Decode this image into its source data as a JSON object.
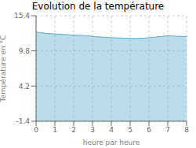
{
  "chart_data": {
    "type": "area",
    "title": "Evolution de la température",
    "xlabel": "heure par heure",
    "ylabel": "Température en °C",
    "color": "#55aacc",
    "xlim": [
      0,
      8
    ],
    "ylim": [
      -1.4,
      15.4
    ],
    "xticks": [
      0,
      1,
      2,
      3,
      4,
      5,
      6,
      7,
      8
    ],
    "yticks": [
      -1.4,
      4.2,
      9.8,
      15.4
    ],
    "grid": true,
    "x": [
      0,
      0.15,
      0.3,
      0.5,
      0.7,
      1.0,
      1.3,
      1.5,
      1.8,
      2.0,
      2.3,
      2.5,
      2.8,
      3.0,
      3.2,
      3.5,
      3.7,
      4.0,
      4.2,
      4.5,
      4.7,
      5.0,
      5.2,
      5.4,
      5.6,
      5.8,
      6.0,
      6.2,
      6.5,
      6.7,
      7.0,
      7.2,
      7.5,
      7.8,
      8.0
    ],
    "values": [
      12.8,
      12.75,
      12.7,
      12.6,
      12.55,
      12.5,
      12.45,
      12.4,
      12.35,
      12.3,
      12.28,
      12.25,
      12.2,
      12.1,
      12.05,
      12.0,
      11.95,
      11.9,
      11.88,
      11.85,
      11.83,
      11.8,
      11.78,
      11.8,
      11.82,
      11.85,
      11.9,
      11.95,
      12.05,
      12.1,
      12.2,
      12.18,
      12.12,
      12.1,
      12.08
    ]
  }
}
